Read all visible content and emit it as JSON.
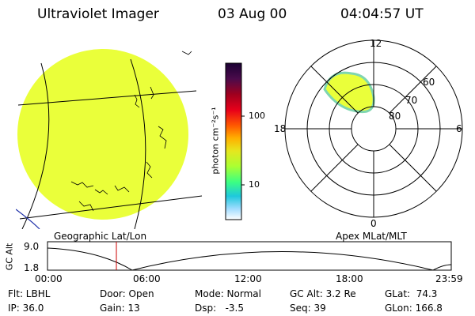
{
  "header": {
    "instrument": "Ultraviolet Imager",
    "date": "03 Aug 00",
    "time": "04:04:57 UT"
  },
  "colorbar": {
    "unit_label": "photon cm⁻²s⁻¹",
    "ticks": [
      "100",
      "10"
    ],
    "colors_top_to_bottom": [
      "#1a0033",
      "#4b0b4b",
      "#a0001e",
      "#e8001a",
      "#ff5a00",
      "#ffb000",
      "#e6e61e",
      "#aaff32",
      "#3cff82",
      "#1ec8dc",
      "#a0dcff",
      "#ffffff"
    ]
  },
  "left_panel": {
    "caption": "Geographic Lat/Lon",
    "fill_color": "#eaff3a"
  },
  "right_panel": {
    "caption": "Apex MLat/MLT",
    "mlt_labels": {
      "top": "12",
      "right": "6",
      "bottom": "0",
      "left": "18"
    },
    "lat_labels": [
      "60",
      "70",
      "80"
    ]
  },
  "altitude_plot": {
    "ylabel": "GC Alt",
    "ytick_top": "9.0",
    "ytick_bottom": "1.8",
    "xticks": [
      "00:00",
      "06:00",
      "12:00",
      "18:00",
      "23:59"
    ],
    "current_time_marker_color": "#cc0000"
  },
  "info": {
    "flt": "Flt: LBHL",
    "ip": "IP: 36.0",
    "door": "Door: Open",
    "gain": "Gain: 13",
    "mode": "Mode: Normal",
    "dsp": "Dsp:   -3.5",
    "gcalt": "GC Alt: 3.2 Re",
    "seq": "Seq: 39",
    "glat": "GLat:  74.3",
    "glon": "GLon: 166.8"
  }
}
